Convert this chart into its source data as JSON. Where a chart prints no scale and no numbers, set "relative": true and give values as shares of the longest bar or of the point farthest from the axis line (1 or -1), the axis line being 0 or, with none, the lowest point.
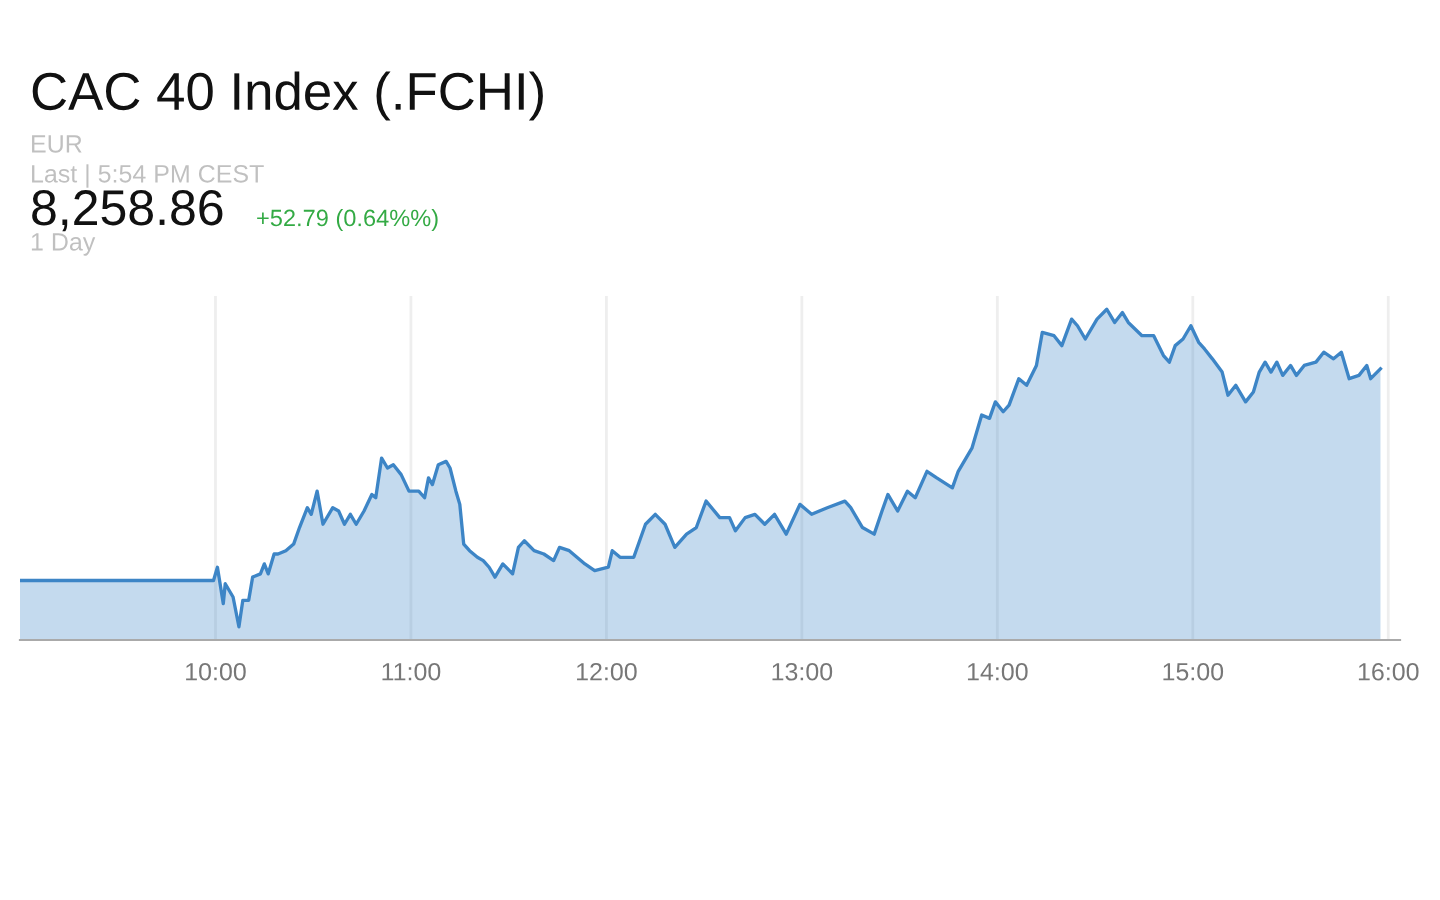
{
  "chart_data": {
    "type": "area",
    "relative": true,
    "title": "CAC 40 Index (.FCHI)",
    "annotations": [
      "EUR",
      "Last | 5:54 PM CEST",
      "8,258.86",
      "+52.79 (0.64%%)",
      "1 Day"
    ],
    "x": [
      9.0,
      9.99,
      10.01,
      10.04,
      10.05,
      10.09,
      10.12,
      10.14,
      10.17,
      10.19,
      10.23,
      10.25,
      10.27,
      10.3,
      10.32,
      10.36,
      10.4,
      10.43,
      10.47,
      10.49,
      10.52,
      10.55,
      10.6,
      10.63,
      10.66,
      10.69,
      10.72,
      10.76,
      10.8,
      10.82,
      10.85,
      10.88,
      10.91,
      10.95,
      10.99,
      11.04,
      11.07,
      11.09,
      11.11,
      11.14,
      11.18,
      11.2,
      11.23,
      11.25,
      11.27,
      11.3,
      11.34,
      11.37,
      11.4,
      11.43,
      11.47,
      11.52,
      11.55,
      11.58,
      11.63,
      11.68,
      11.73,
      11.76,
      11.81,
      11.89,
      11.94,
      12.01,
      12.03,
      12.07,
      12.14,
      12.2,
      12.25,
      12.3,
      12.35,
      12.41,
      12.46,
      12.51,
      12.58,
      12.63,
      12.66,
      12.71,
      12.76,
      12.81,
      12.86,
      12.92,
      12.99,
      13.05,
      13.13,
      13.22,
      13.25,
      13.31,
      13.37,
      13.41,
      13.44,
      13.49,
      13.54,
      13.58,
      13.64,
      13.69,
      13.77,
      13.8,
      13.87,
      13.92,
      13.96,
      13.99,
      14.03,
      14.06,
      14.11,
      14.15,
      14.2,
      14.23,
      14.29,
      14.33,
      14.38,
      14.41,
      14.45,
      14.51,
      14.56,
      14.6,
      14.64,
      14.67,
      14.74,
      14.8,
      14.85,
      14.88,
      14.91,
      14.95,
      14.99,
      15.03,
      15.06,
      15.1,
      15.15,
      15.18,
      15.22,
      15.27,
      15.31,
      15.34,
      15.37,
      15.4,
      15.43,
      15.46,
      15.5,
      15.53,
      15.57,
      15.63,
      15.67,
      15.72,
      15.76,
      15.8,
      15.85,
      15.89,
      15.91,
      15.96
    ],
    "series": [
      {
        "color": "#3d85c6",
        "values": [
          0.18,
          0.18,
          0.22,
          0.11,
          0.17,
          0.13,
          0.04,
          0.12,
          0.12,
          0.19,
          0.2,
          0.23,
          0.2,
          0.26,
          0.26,
          0.27,
          0.29,
          0.34,
          0.4,
          0.38,
          0.45,
          0.35,
          0.4,
          0.39,
          0.35,
          0.38,
          0.35,
          0.39,
          0.44,
          0.43,
          0.55,
          0.52,
          0.53,
          0.5,
          0.45,
          0.45,
          0.43,
          0.49,
          0.47,
          0.53,
          0.54,
          0.52,
          0.45,
          0.41,
          0.29,
          0.27,
          0.25,
          0.24,
          0.22,
          0.19,
          0.23,
          0.2,
          0.28,
          0.3,
          0.27,
          0.26,
          0.24,
          0.28,
          0.27,
          0.23,
          0.21,
          0.22,
          0.27,
          0.25,
          0.25,
          0.35,
          0.38,
          0.35,
          0.28,
          0.32,
          0.34,
          0.42,
          0.37,
          0.37,
          0.33,
          0.37,
          0.38,
          0.35,
          0.38,
          0.32,
          0.41,
          0.38,
          0.4,
          0.42,
          0.4,
          0.34,
          0.32,
          0.39,
          0.44,
          0.39,
          0.45,
          0.43,
          0.51,
          0.49,
          0.46,
          0.51,
          0.58,
          0.68,
          0.67,
          0.72,
          0.69,
          0.71,
          0.79,
          0.77,
          0.83,
          0.93,
          0.92,
          0.89,
          0.97,
          0.95,
          0.91,
          0.97,
          1.0,
          0.96,
          0.99,
          0.96,
          0.92,
          0.92,
          0.86,
          0.84,
          0.89,
          0.91,
          0.95,
          0.9,
          0.88,
          0.85,
          0.81,
          0.74,
          0.77,
          0.72,
          0.75,
          0.81,
          0.84,
          0.81,
          0.84,
          0.8,
          0.83,
          0.8,
          0.83,
          0.84,
          0.87,
          0.85,
          0.87,
          0.79,
          0.8,
          0.83,
          0.79,
          0.82
        ]
      }
    ],
    "xlim": [
      9,
      16.06
    ],
    "xticks": [
      {
        "value": 10,
        "label": "10:00"
      },
      {
        "value": 11,
        "label": "11:00"
      },
      {
        "value": 12,
        "label": "12:00"
      },
      {
        "value": 13,
        "label": "13:00"
      },
      {
        "value": 14,
        "label": "14:00"
      },
      {
        "value": 15,
        "label": "15:00"
      },
      {
        "value": 16,
        "label": "16:00"
      }
    ],
    "grid": "x"
  }
}
